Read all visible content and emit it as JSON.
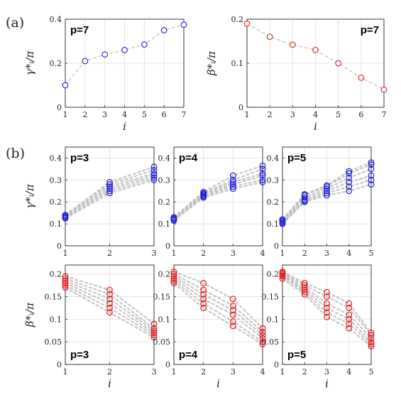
{
  "panel_labels": [
    "(a)",
    "(b)"
  ],
  "colors": {
    "gamma": "#1f1fd6",
    "beta": "#e31b1b",
    "ensemble": "#bdbdbd",
    "guide": "#b0b0b0"
  },
  "chart_data": [
    {
      "id": "a-gamma",
      "type": "line",
      "label": "p=7",
      "ylabel": "γ*ᵢ/π",
      "xlabel": "i",
      "xlim": [
        1,
        7
      ],
      "ylim": [
        0,
        0.4
      ],
      "xticks": [
        "1",
        "2",
        "3",
        "4",
        "5",
        "6",
        "7"
      ],
      "yticks": [
        "0",
        "0.2",
        "0.4"
      ],
      "grid": true,
      "marker_color": "gamma",
      "x": [
        1,
        2,
        3,
        4,
        5,
        6,
        7
      ],
      "y": [
        0.1,
        0.21,
        0.24,
        0.26,
        0.285,
        0.35,
        0.375
      ]
    },
    {
      "id": "a-beta",
      "type": "line",
      "label": "p=7",
      "ylabel": "β*ᵢ/π",
      "xlabel": "i",
      "xlim": [
        1,
        7
      ],
      "ylim": [
        0,
        0.2
      ],
      "xticks": [
        "1",
        "2",
        "3",
        "4",
        "5",
        "6",
        "7"
      ],
      "yticks": [
        "0",
        "0.1",
        "0.2"
      ],
      "grid": true,
      "marker_color": "beta",
      "x": [
        1,
        2,
        3,
        4,
        5,
        6,
        7
      ],
      "y": [
        0.19,
        0.16,
        0.142,
        0.13,
        0.1,
        0.067,
        0.04
      ]
    },
    {
      "id": "b-g3",
      "type": "scatter",
      "label": "p=3",
      "ylabel": "γ*ᵢ/π",
      "xlabel": "",
      "xlim": [
        1,
        3
      ],
      "ylim": [
        0,
        0.45
      ],
      "xticks": [
        "1",
        "2",
        "3"
      ],
      "yticks": [
        "0",
        "0.1",
        "0.2",
        "0.3",
        "0.4"
      ],
      "grid": true,
      "marker_color": "gamma",
      "series": [
        {
          "x": [
            1,
            2,
            3
          ],
          "y": [
            0.125,
            0.24,
            0.3
          ]
        },
        {
          "x": [
            1,
            2,
            3
          ],
          "y": [
            0.13,
            0.25,
            0.31
          ]
        },
        {
          "x": [
            1,
            2,
            3
          ],
          "y": [
            0.13,
            0.26,
            0.32
          ]
        },
        {
          "x": [
            1,
            2,
            3
          ],
          "y": [
            0.135,
            0.27,
            0.33
          ]
        },
        {
          "x": [
            1,
            2,
            3
          ],
          "y": [
            0.14,
            0.28,
            0.345
          ]
        },
        {
          "x": [
            1,
            2,
            3
          ],
          "y": [
            0.14,
            0.29,
            0.36
          ]
        }
      ]
    },
    {
      "id": "b-g4",
      "type": "scatter",
      "label": "p=4",
      "ylabel": "",
      "xlabel": "",
      "xlim": [
        1,
        4
      ],
      "ylim": [
        0,
        0.45
      ],
      "xticks": [
        "1",
        "2",
        "3",
        "4"
      ],
      "yticks": [
        "0",
        "0.1",
        "0.2",
        "0.3",
        "0.4"
      ],
      "grid": true,
      "marker_color": "gamma",
      "series": [
        {
          "x": [
            1,
            2,
            3,
            4
          ],
          "y": [
            0.115,
            0.22,
            0.26,
            0.29
          ]
        },
        {
          "x": [
            1,
            2,
            3,
            4
          ],
          "y": [
            0.12,
            0.225,
            0.27,
            0.3
          ]
        },
        {
          "x": [
            1,
            2,
            3,
            4
          ],
          "y": [
            0.12,
            0.23,
            0.28,
            0.32
          ]
        },
        {
          "x": [
            1,
            2,
            3,
            4
          ],
          "y": [
            0.125,
            0.235,
            0.29,
            0.33
          ]
        },
        {
          "x": [
            1,
            2,
            3,
            4
          ],
          "y": [
            0.13,
            0.24,
            0.3,
            0.35
          ]
        },
        {
          "x": [
            1,
            2,
            3,
            4
          ],
          "y": [
            0.13,
            0.245,
            0.32,
            0.365
          ]
        }
      ]
    },
    {
      "id": "b-g5",
      "type": "scatter",
      "label": "p=5",
      "ylabel": "",
      "xlabel": "",
      "xlim": [
        1,
        5
      ],
      "ylim": [
        0,
        0.45
      ],
      "xticks": [
        "1",
        "2",
        "3",
        "4",
        "5"
      ],
      "yticks": [
        "0",
        "0.1",
        "0.2",
        "0.3",
        "0.4"
      ],
      "grid": true,
      "marker_color": "gamma",
      "series": [
        {
          "x": [
            1,
            2,
            3,
            4,
            5
          ],
          "y": [
            0.1,
            0.2,
            0.23,
            0.25,
            0.28
          ]
        },
        {
          "x": [
            1,
            2,
            3,
            4,
            5
          ],
          "y": [
            0.105,
            0.205,
            0.24,
            0.27,
            0.3
          ]
        },
        {
          "x": [
            1,
            2,
            3,
            4,
            5
          ],
          "y": [
            0.11,
            0.21,
            0.25,
            0.29,
            0.32
          ]
        },
        {
          "x": [
            1,
            2,
            3,
            4,
            5
          ],
          "y": [
            0.115,
            0.22,
            0.26,
            0.31,
            0.35
          ]
        },
        {
          "x": [
            1,
            2,
            3,
            4,
            5
          ],
          "y": [
            0.12,
            0.23,
            0.27,
            0.33,
            0.37
          ]
        },
        {
          "x": [
            1,
            2,
            3,
            4,
            5
          ],
          "y": [
            0.12,
            0.235,
            0.275,
            0.34,
            0.38
          ]
        }
      ]
    },
    {
      "id": "b-b3",
      "type": "scatter",
      "label": "p=3",
      "ylabel": "β*ᵢ/π",
      "xlabel": "i",
      "xlim": [
        1,
        3
      ],
      "ylim": [
        0,
        0.22
      ],
      "xticks": [
        "1",
        "2",
        "3"
      ],
      "yticks": [
        "0",
        "0.05",
        "0.1",
        "0.15",
        "0.2"
      ],
      "grid": true,
      "marker_color": "beta",
      "series": [
        {
          "x": [
            1,
            2,
            3
          ],
          "y": [
            0.17,
            0.115,
            0.06
          ]
        },
        {
          "x": [
            1,
            2,
            3
          ],
          "y": [
            0.175,
            0.125,
            0.065
          ]
        },
        {
          "x": [
            1,
            2,
            3
          ],
          "y": [
            0.18,
            0.135,
            0.07
          ]
        },
        {
          "x": [
            1,
            2,
            3
          ],
          "y": [
            0.185,
            0.145,
            0.075
          ]
        },
        {
          "x": [
            1,
            2,
            3
          ],
          "y": [
            0.19,
            0.155,
            0.08
          ]
        },
        {
          "x": [
            1,
            2,
            3
          ],
          "y": [
            0.195,
            0.165,
            0.09
          ]
        }
      ]
    },
    {
      "id": "b-b4",
      "type": "scatter",
      "label": "p=4",
      "ylabel": "",
      "xlabel": "i",
      "xlim": [
        1,
        4
      ],
      "ylim": [
        0,
        0.22
      ],
      "xticks": [
        "1",
        "2",
        "3",
        "4"
      ],
      "yticks": [
        "0",
        "0.05",
        "0.1",
        "0.15",
        "0.2"
      ],
      "grid": true,
      "marker_color": "beta",
      "series": [
        {
          "x": [
            1,
            2,
            3,
            4
          ],
          "y": [
            0.18,
            0.125,
            0.085,
            0.045
          ]
        },
        {
          "x": [
            1,
            2,
            3,
            4
          ],
          "y": [
            0.185,
            0.135,
            0.095,
            0.05
          ]
        },
        {
          "x": [
            1,
            2,
            3,
            4
          ],
          "y": [
            0.19,
            0.145,
            0.11,
            0.058
          ]
        },
        {
          "x": [
            1,
            2,
            3,
            4
          ],
          "y": [
            0.195,
            0.155,
            0.12,
            0.065
          ]
        },
        {
          "x": [
            1,
            2,
            3,
            4
          ],
          "y": [
            0.2,
            0.165,
            0.13,
            0.072
          ]
        },
        {
          "x": [
            1,
            2,
            3,
            4
          ],
          "y": [
            0.205,
            0.18,
            0.145,
            0.08
          ]
        }
      ]
    },
    {
      "id": "b-b5",
      "type": "scatter",
      "label": "p=5",
      "ylabel": "",
      "xlabel": "i",
      "xlim": [
        1,
        5
      ],
      "ylim": [
        0,
        0.22
      ],
      "xticks": [
        "1",
        "2",
        "3",
        "4",
        "5"
      ],
      "yticks": [
        "0",
        "0.05",
        "0.1",
        "0.15",
        "0.2"
      ],
      "grid": true,
      "marker_color": "beta",
      "series": [
        {
          "x": [
            1,
            2,
            3,
            4,
            5
          ],
          "y": [
            0.19,
            0.155,
            0.105,
            0.08,
            0.04
          ]
        },
        {
          "x": [
            1,
            2,
            3,
            4,
            5
          ],
          "y": [
            0.195,
            0.16,
            0.115,
            0.09,
            0.045
          ]
        },
        {
          "x": [
            1,
            2,
            3,
            4,
            5
          ],
          "y": [
            0.197,
            0.165,
            0.125,
            0.1,
            0.05
          ]
        },
        {
          "x": [
            1,
            2,
            3,
            4,
            5
          ],
          "y": [
            0.2,
            0.17,
            0.135,
            0.11,
            0.058
          ]
        },
        {
          "x": [
            1,
            2,
            3,
            4,
            5
          ],
          "y": [
            0.203,
            0.175,
            0.15,
            0.125,
            0.065
          ]
        },
        {
          "x": [
            1,
            2,
            3,
            4,
            5
          ],
          "y": [
            0.205,
            0.18,
            0.16,
            0.135,
            0.07
          ]
        }
      ]
    }
  ]
}
